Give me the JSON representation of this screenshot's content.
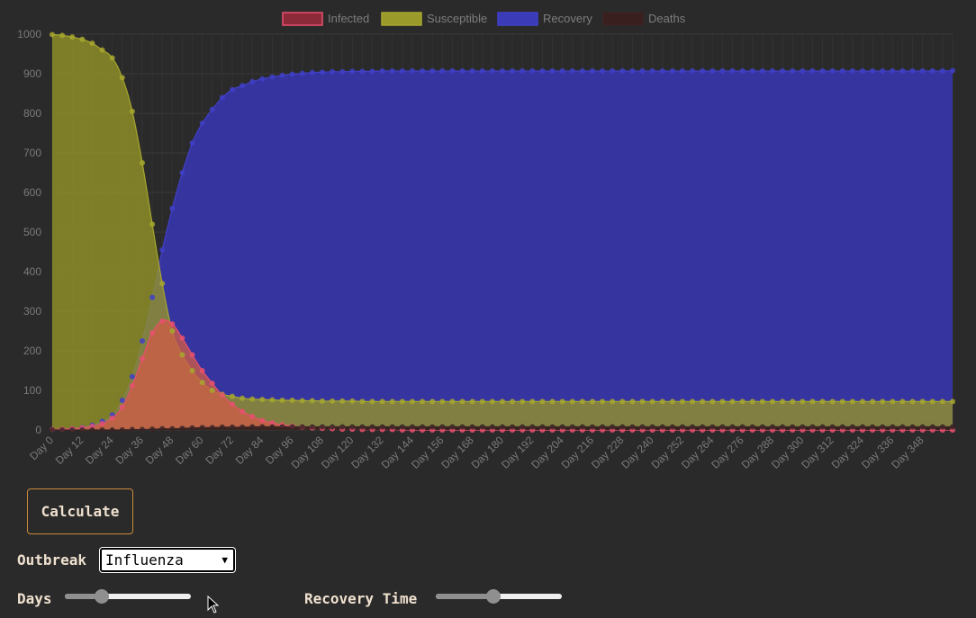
{
  "chart_data": {
    "type": "area",
    "title": "",
    "xlabel": "",
    "ylabel": "",
    "ylim": [
      0,
      1000
    ],
    "yticks": [
      0,
      100,
      200,
      300,
      400,
      500,
      600,
      700,
      800,
      900,
      1000
    ],
    "x_tick_labels": [
      "Day 0",
      "Day 12",
      "Day 24",
      "Day 36",
      "Day 48",
      "Day 60",
      "Day 72",
      "Day 84",
      "Day 96",
      "Day 108",
      "Day 120",
      "Day 132",
      "Day 144",
      "Day 156",
      "Day 168",
      "Day 180",
      "Day 192",
      "Day 204",
      "Day 216",
      "Day 228",
      "Day 240",
      "Day 252",
      "Day 264",
      "Day 276",
      "Day 288",
      "Day 300",
      "Day 312",
      "Day 324",
      "Day 336",
      "Day 348"
    ],
    "x_days": [
      0,
      4,
      8,
      12,
      16,
      20,
      24,
      28,
      32,
      36,
      40,
      44,
      48,
      52,
      56,
      60,
      64,
      68,
      72,
      76,
      80,
      84,
      88,
      92,
      96,
      100,
      104,
      108,
      112,
      116,
      120,
      124,
      128,
      132,
      136,
      140,
      144,
      148,
      152,
      156,
      160,
      164,
      168,
      172,
      176,
      180,
      184,
      188,
      192,
      196,
      200,
      204,
      208,
      212,
      216,
      220,
      224,
      228,
      232,
      236,
      240,
      244,
      248,
      252,
      256,
      260,
      264,
      268,
      272,
      276,
      280,
      284,
      288,
      292,
      296,
      300,
      304,
      308,
      312,
      316,
      320,
      324,
      328,
      332,
      336,
      340,
      344,
      348,
      352,
      356,
      360
    ],
    "legend_position": "top",
    "series": [
      {
        "name": "Infected",
        "color": "#e8506f",
        "fill": "rgba(205,92,70,0.78)",
        "values": [
          1,
          2,
          3,
          5,
          9,
          16,
          30,
          58,
          112,
          180,
          245,
          275,
          268,
          232,
          190,
          150,
          118,
          88,
          65,
          47,
          34,
          24,
          18,
          13,
          10,
          7,
          5,
          4,
          3,
          2,
          2,
          1,
          1,
          1,
          1,
          0,
          0,
          0,
          0,
          0,
          0,
          0,
          0,
          0,
          0,
          0,
          0,
          0,
          0,
          0,
          0,
          0,
          0,
          0,
          0,
          0,
          0,
          0,
          0,
          0,
          0,
          0,
          0,
          0,
          0,
          0,
          0,
          0,
          0,
          0,
          0,
          0,
          0,
          0,
          0,
          0,
          0,
          0,
          0,
          0,
          0,
          0,
          0,
          0,
          0,
          0,
          0,
          0,
          0,
          0,
          0
        ]
      },
      {
        "name": "Susceptible",
        "color": "#a7a72e",
        "fill": "rgba(150,150,40,0.78)",
        "values": [
          999,
          997,
          993,
          987,
          977,
          960,
          940,
          890,
          805,
          675,
          520,
          370,
          250,
          190,
          150,
          120,
          100,
          90,
          85,
          80,
          78,
          77,
          76,
          75,
          75,
          74,
          74,
          73,
          73,
          73,
          73,
          72,
          72,
          72,
          72,
          72,
          72,
          72,
          72,
          72,
          72,
          72,
          72,
          72,
          72,
          72,
          72,
          72,
          72,
          72,
          72,
          72,
          72,
          72,
          72,
          72,
          72,
          72,
          72,
          72,
          72,
          72,
          72,
          72,
          72,
          72,
          72,
          72,
          72,
          72,
          72,
          72,
          72,
          72,
          72,
          72,
          72,
          72,
          72,
          72,
          72,
          72,
          72,
          72,
          72,
          72,
          72,
          72,
          72,
          72,
          72
        ]
      },
      {
        "name": "Recovery",
        "color": "#4040c8",
        "fill": "rgba(54,52,158,1)",
        "values": [
          0,
          1,
          3,
          6,
          12,
          22,
          38,
          75,
          135,
          225,
          335,
          455,
          560,
          650,
          725,
          775,
          810,
          840,
          860,
          870,
          880,
          887,
          892,
          896,
          899,
          901,
          903,
          904,
          905,
          905,
          906,
          906,
          906,
          907,
          907,
          907,
          907,
          907,
          907,
          907,
          907,
          907,
          907,
          907,
          907,
          907,
          907,
          907,
          907,
          907,
          907,
          907,
          907,
          907,
          907,
          907,
          907,
          907,
          907,
          907,
          907,
          907,
          907,
          907,
          907,
          907,
          907,
          907,
          907,
          907,
          907,
          907,
          907,
          907,
          907,
          907,
          907,
          907,
          907,
          907,
          907,
          907,
          907,
          907,
          907,
          907,
          907,
          907,
          907,
          907,
          908
        ]
      },
      {
        "name": "Deaths",
        "color": "#3a2424",
        "fill": "rgba(44,28,28,0.9)",
        "values": [
          0,
          0,
          0,
          0,
          0,
          0,
          0,
          0,
          1,
          1,
          2,
          3,
          3,
          4,
          5,
          6,
          6,
          7,
          7,
          7,
          8,
          8,
          8,
          8,
          8,
          8,
          8,
          8,
          8,
          8,
          8,
          8,
          8,
          8,
          8,
          8,
          8,
          8,
          8,
          8,
          8,
          8,
          8,
          8,
          8,
          8,
          8,
          8,
          8,
          8,
          8,
          8,
          8,
          8,
          8,
          8,
          8,
          8,
          8,
          8,
          8,
          8,
          8,
          8,
          8,
          8,
          8,
          8,
          8,
          8,
          8,
          8,
          8,
          8,
          8,
          8,
          8,
          8,
          8,
          8,
          8,
          8,
          8,
          8,
          8,
          8,
          8,
          8,
          8,
          8,
          8
        ]
      }
    ]
  },
  "controls": {
    "calculate_label": "Calculate",
    "outbreak_label": "Outbreak",
    "outbreak_selected": "Influenza",
    "days_label": "Days",
    "days_value": 0.27,
    "recovery_label": "Recovery Time",
    "recovery_value": 0.45
  },
  "colors": {
    "background": "#2b2a2a",
    "button_border": "#c98a3c",
    "label_text": "#efe1cf"
  }
}
